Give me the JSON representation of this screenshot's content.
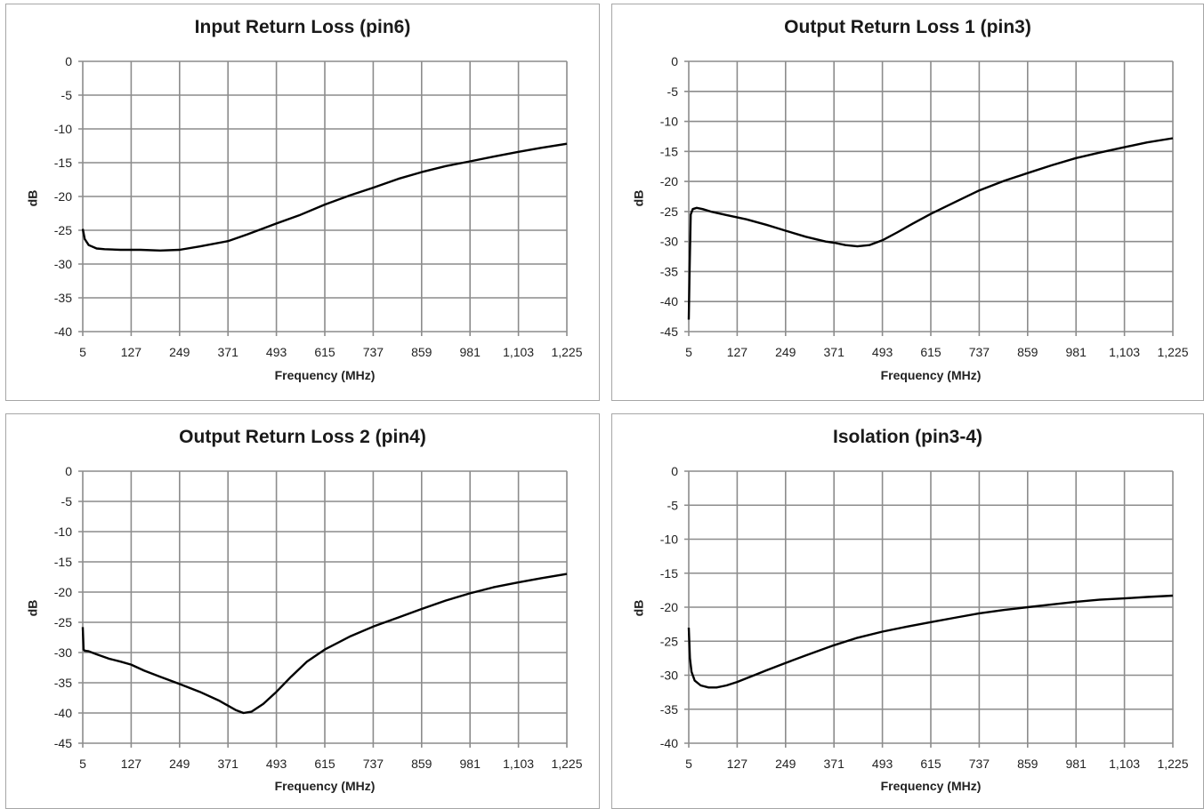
{
  "chart_data": [
    {
      "type": "line",
      "title": "Input Return Loss (pin6)",
      "xlabel": "Frequency (MHz)",
      "ylabel": "dB",
      "x_ticks": [
        "5",
        "127",
        "249",
        "371",
        "493",
        "615",
        "737",
        "859",
        "981",
        "1,103",
        "1,225"
      ],
      "xlim": [
        5,
        1225
      ],
      "y_ticks": [
        "0",
        "-5",
        "-10",
        "-15",
        "-20",
        "-25",
        "-30",
        "-35",
        "-40"
      ],
      "ylim": [
        -40,
        0
      ],
      "grid": true,
      "series": [
        {
          "color": "#000000",
          "x": [
            5,
            10,
            20,
            40,
            60,
            100,
            150,
            200,
            249,
            300,
            371,
            420,
            493,
            550,
            615,
            680,
            737,
            800,
            859,
            920,
            981,
            1040,
            1103,
            1160,
            1225
          ],
          "y": [
            -24.8,
            -26.3,
            -27.2,
            -27.7,
            -27.8,
            -27.9,
            -27.9,
            -28.0,
            -27.9,
            -27.4,
            -26.6,
            -25.6,
            -24.0,
            -22.8,
            -21.2,
            -19.8,
            -18.7,
            -17.4,
            -16.4,
            -15.5,
            -14.8,
            -14.1,
            -13.4,
            -12.8,
            -12.2
          ]
        }
      ]
    },
    {
      "type": "line",
      "title": "Output Return Loss 1 (pin3)",
      "xlabel": "Frequency (MHz)",
      "ylabel": "dB",
      "x_ticks": [
        "5",
        "127",
        "249",
        "371",
        "493",
        "615",
        "737",
        "859",
        "981",
        "1,103",
        "1,225"
      ],
      "xlim": [
        5,
        1225
      ],
      "y_ticks": [
        "0",
        "-5",
        "-10",
        "-15",
        "-20",
        "-25",
        "-30",
        "-35",
        "-40",
        "-45"
      ],
      "ylim": [
        -45,
        0
      ],
      "grid": true,
      "series": [
        {
          "color": "#000000",
          "x": [
            5,
            7,
            10,
            15,
            25,
            40,
            60,
            100,
            150,
            200,
            249,
            300,
            350,
            371,
            400,
            430,
            460,
            493,
            530,
            570,
            615,
            680,
            737,
            800,
            859,
            920,
            981,
            1040,
            1103,
            1160,
            1225
          ],
          "y": [
            -43.0,
            -35.0,
            -25.5,
            -24.6,
            -24.4,
            -24.6,
            -25.0,
            -25.6,
            -26.3,
            -27.2,
            -28.2,
            -29.2,
            -30.0,
            -30.2,
            -30.6,
            -30.8,
            -30.6,
            -29.8,
            -28.5,
            -27.0,
            -25.4,
            -23.3,
            -21.5,
            -19.9,
            -18.6,
            -17.3,
            -16.1,
            -15.2,
            -14.3,
            -13.5,
            -12.8
          ]
        }
      ]
    },
    {
      "type": "line",
      "title": "Output Return Loss 2 (pin4)",
      "xlabel": "Frequency (MHz)",
      "ylabel": "dB",
      "x_ticks": [
        "5",
        "127",
        "249",
        "371",
        "493",
        "615",
        "737",
        "859",
        "981",
        "1,103",
        "1,225"
      ],
      "xlim": [
        5,
        1225
      ],
      "y_ticks": [
        "0",
        "-5",
        "-10",
        "-15",
        "-20",
        "-25",
        "-30",
        "-35",
        "-40",
        "-45"
      ],
      "ylim": [
        -45,
        0
      ],
      "grid": true,
      "series": [
        {
          "color": "#000000",
          "x": [
            5,
            7,
            10,
            20,
            40,
            70,
            100,
            127,
            160,
            200,
            249,
            300,
            350,
            390,
            410,
            430,
            460,
            493,
            530,
            570,
            615,
            680,
            737,
            800,
            859,
            920,
            981,
            1040,
            1103,
            1160,
            1225
          ],
          "y": [
            -25.8,
            -29.5,
            -29.7,
            -29.8,
            -30.3,
            -31.0,
            -31.5,
            -32.0,
            -33.0,
            -34.0,
            -35.2,
            -36.5,
            -38.0,
            -39.5,
            -40.0,
            -39.8,
            -38.5,
            -36.5,
            -34.0,
            -31.5,
            -29.5,
            -27.3,
            -25.7,
            -24.2,
            -22.8,
            -21.4,
            -20.2,
            -19.2,
            -18.4,
            -17.7,
            -17.0
          ]
        }
      ]
    },
    {
      "type": "line",
      "title": "Isolation (pin3-4)",
      "xlabel": "Frequency (MHz)",
      "ylabel": "dB",
      "x_ticks": [
        "5",
        "127",
        "249",
        "371",
        "493",
        "615",
        "737",
        "859",
        "981",
        "1,103",
        "1,225"
      ],
      "xlim": [
        5,
        1225
      ],
      "y_ticks": [
        "0",
        "-5",
        "-10",
        "-15",
        "-20",
        "-25",
        "-30",
        "-35",
        "-40"
      ],
      "ylim": [
        -40,
        0
      ],
      "grid": true,
      "series": [
        {
          "color": "#000000",
          "x": [
            5,
            8,
            12,
            20,
            35,
            55,
            75,
            100,
            127,
            170,
            200,
            249,
            300,
            371,
            430,
            493,
            560,
            615,
            680,
            737,
            800,
            859,
            920,
            981,
            1040,
            1103,
            1160,
            1225
          ],
          "y": [
            -23.0,
            -27.5,
            -29.5,
            -30.8,
            -31.5,
            -31.8,
            -31.8,
            -31.5,
            -31.0,
            -30.0,
            -29.3,
            -28.2,
            -27.1,
            -25.6,
            -24.5,
            -23.6,
            -22.8,
            -22.2,
            -21.5,
            -20.9,
            -20.4,
            -20.0,
            -19.6,
            -19.2,
            -18.9,
            -18.7,
            -18.5,
            -18.3
          ]
        }
      ]
    }
  ]
}
